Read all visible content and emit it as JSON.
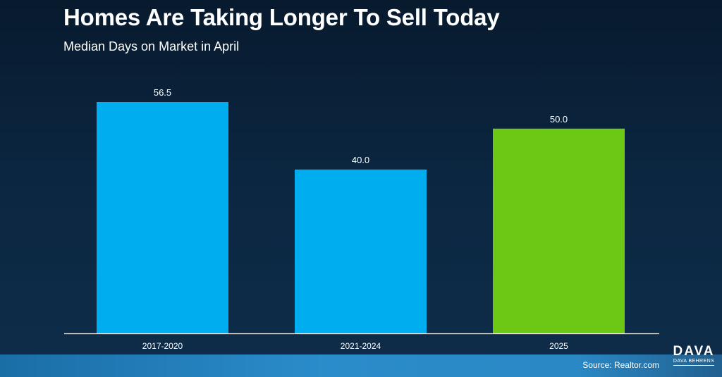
{
  "title": "Homes Are Taking Longer To Sell Today",
  "subtitle": "Median Days on Market in April",
  "source": "Source: Realtor.com",
  "logo": {
    "main": "DAVA",
    "sub": "DAVA BEHRENS"
  },
  "colors": {
    "background": "#0b2640",
    "bar_blue": "#00aeef",
    "bar_green": "#6cc814",
    "axis": "#ffffff",
    "text": "#ffffff"
  },
  "chart_data": {
    "type": "bar",
    "title": "Homes Are Taking Longer To Sell Today",
    "subtitle": "Median Days on Market in April",
    "categories": [
      "2017-2020",
      "2021-2024",
      "2025"
    ],
    "values": [
      56.5,
      40.0,
      50.0
    ],
    "data_labels": [
      "56.5",
      "40.0",
      "50.0"
    ],
    "bar_colors": [
      "#00aeef",
      "#00aeef",
      "#6cc814"
    ],
    "xlabel": "",
    "ylabel": "",
    "ylim": [
      0,
      56.5
    ],
    "grid": false,
    "legend": "none"
  }
}
